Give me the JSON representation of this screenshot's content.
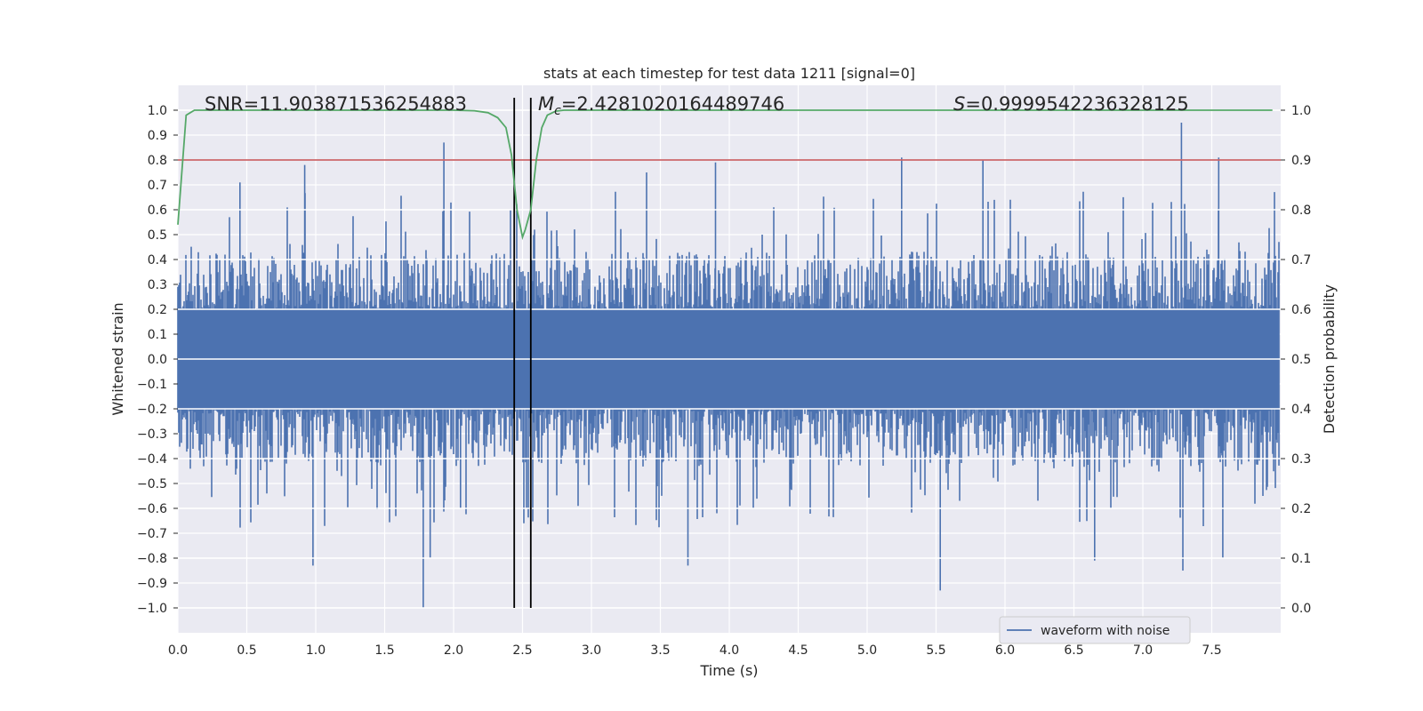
{
  "chart_data": {
    "type": "line",
    "title": "stats at each timestep for test data 1211 [signal=0]",
    "xlabel": "Time (s)",
    "ylabel_left": "Whitened strain",
    "ylabel_right": "Detection probability",
    "xlim": [
      0.0,
      8.0
    ],
    "ylim_left": [
      -1.1,
      1.1
    ],
    "ylim_right": [
      -0.05,
      1.05
    ],
    "xticks": [
      0.0,
      0.5,
      1.0,
      1.5,
      2.0,
      2.5,
      3.0,
      3.5,
      4.0,
      4.5,
      5.0,
      5.5,
      6.0,
      6.5,
      7.0,
      7.5
    ],
    "xtick_labels": [
      "0.0",
      "0.5",
      "1.0",
      "1.5",
      "2.0",
      "2.5",
      "3.0",
      "3.5",
      "4.0",
      "4.5",
      "5.0",
      "5.5",
      "6.0",
      "6.5",
      "7.0",
      "7.5"
    ],
    "yticks_left": [
      -1.0,
      -0.9,
      -0.8,
      -0.7,
      -0.6,
      -0.5,
      -0.4,
      -0.3,
      -0.2,
      -0.1,
      0.0,
      0.1,
      0.2,
      0.3,
      0.4,
      0.5,
      0.6,
      0.7,
      0.8,
      0.9,
      1.0
    ],
    "ytick_labels_left": [
      "−1.0",
      "−0.9",
      "−0.8",
      "−0.7",
      "−0.6",
      "−0.5",
      "−0.4",
      "−0.3",
      "−0.2",
      "−0.1",
      "0.0",
      "0.1",
      "0.2",
      "0.3",
      "0.4",
      "0.5",
      "0.6",
      "0.7",
      "0.8",
      "0.9",
      "1.0"
    ],
    "yticks_right": [
      0.0,
      0.1,
      0.2,
      0.3,
      0.4,
      0.5,
      0.6,
      0.7,
      0.8,
      0.9,
      1.0
    ],
    "ytick_labels_right": [
      "0.0",
      "0.1",
      "0.2",
      "0.3",
      "0.4",
      "0.5",
      "0.6",
      "0.7",
      "0.8",
      "0.9",
      "1.0"
    ],
    "annotations": {
      "snr": "SNR=11.903871536254883",
      "mc_symbol": "M",
      "mc_subscript": "c",
      "mc_value": "=2.4281020164489746",
      "s_symbol": "S",
      "s_value": "=0.9999542236328125"
    },
    "legend": {
      "entry": "waveform with noise",
      "position": "lower-center-right"
    },
    "threshold": {
      "value": 0.9,
      "axis": "right",
      "color": "#c44e52"
    },
    "vlines": [
      2.44,
      2.56
    ],
    "waveform": {
      "name": "waveform with noise",
      "color": "#4c72b0",
      "t_start": 0.0,
      "t_end": 7.99,
      "typical_amplitude": 0.36,
      "max_amplitude": 1.0,
      "peaks": [
        [
          0.92,
          0.78
        ],
        [
          1.93,
          0.87
        ],
        [
          1.78,
          -1.0
        ],
        [
          0.98,
          -0.83
        ],
        [
          1.83,
          -0.8
        ],
        [
          3.4,
          0.75
        ],
        [
          3.7,
          -0.83
        ],
        [
          3.9,
          0.79
        ],
        [
          5.25,
          0.81
        ],
        [
          5.53,
          -0.93
        ],
        [
          5.84,
          0.8
        ],
        [
          6.65,
          -0.81
        ],
        [
          7.28,
          0.95
        ],
        [
          7.29,
          -0.85
        ],
        [
          7.55,
          0.81
        ],
        [
          7.58,
          -0.8
        ],
        [
          2.05,
          -0.6
        ],
        [
          0.45,
          0.71
        ]
      ]
    },
    "probability": {
      "name": "detection probability",
      "color": "#55a868",
      "t": [
        0.0,
        0.06,
        0.12,
        0.2,
        0.5,
        1.0,
        1.5,
        2.0,
        2.15,
        2.25,
        2.32,
        2.38,
        2.42,
        2.46,
        2.5,
        2.52,
        2.56,
        2.6,
        2.64,
        2.68,
        2.74,
        2.8,
        3.0,
        4.0,
        5.0,
        6.0,
        7.0,
        7.94
      ],
      "p": [
        0.77,
        0.99,
        1.0,
        1.0,
        1.0,
        1.0,
        1.0,
        1.0,
        0.999,
        0.995,
        0.985,
        0.965,
        0.91,
        0.8,
        0.745,
        0.76,
        0.8,
        0.9,
        0.965,
        0.99,
        0.998,
        1.0,
        1.0,
        1.0,
        1.0,
        1.0,
        1.0,
        1.0
      ]
    }
  }
}
